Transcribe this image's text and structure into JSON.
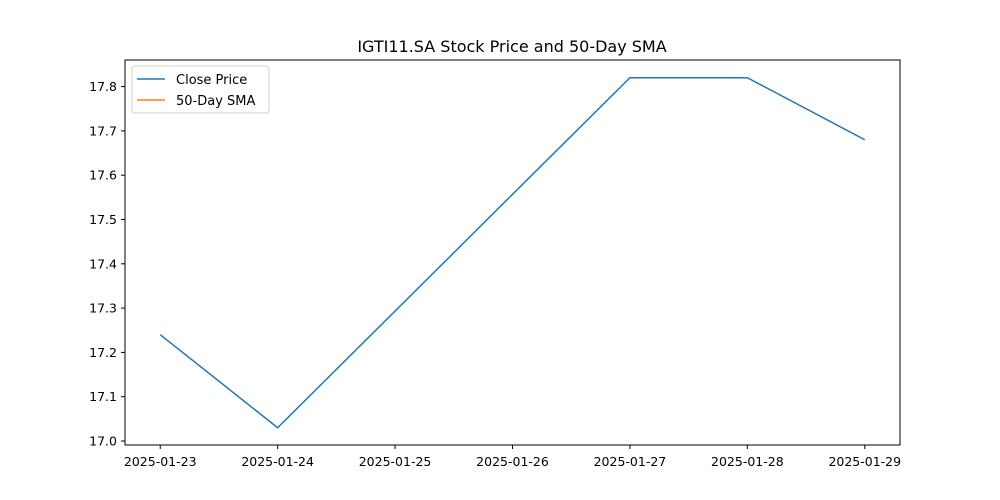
{
  "chart_data": {
    "type": "line",
    "title": "IGTI11.SA Stock Price and 50-Day SMA",
    "xlabel": "",
    "ylabel": "",
    "x": [
      "2025-01-23",
      "2025-01-24",
      "2025-01-25",
      "2025-01-26",
      "2025-01-27",
      "2025-01-28",
      "2025-01-29"
    ],
    "series": [
      {
        "name": "Close Price",
        "color": "#1f77b4",
        "points": [
          {
            "x": "2025-01-23",
            "y": 17.24
          },
          {
            "x": "2025-01-24",
            "y": 17.03
          },
          {
            "x": "2025-01-27",
            "y": 17.82
          },
          {
            "x": "2025-01-28",
            "y": 17.82
          },
          {
            "x": "2025-01-29",
            "y": 17.68
          }
        ]
      },
      {
        "name": "50-Day SMA",
        "color": "#ff7f0e",
        "points": []
      }
    ],
    "x_ticks": [
      "2025-01-23",
      "2025-01-24",
      "2025-01-25",
      "2025-01-26",
      "2025-01-27",
      "2025-01-28",
      "2025-01-29"
    ],
    "y_ticks": [
      17.0,
      17.1,
      17.2,
      17.3,
      17.4,
      17.5,
      17.6,
      17.7,
      17.8
    ],
    "y_tick_labels": [
      "17.0",
      "17.1",
      "17.2",
      "17.3",
      "17.4",
      "17.5",
      "17.6",
      "17.7",
      "17.8"
    ],
    "xlim": [
      "2025-01-22.7",
      "2025-01-29.3"
    ],
    "ylim": [
      16.991,
      17.86
    ],
    "grid": false,
    "legend": "upper left"
  }
}
